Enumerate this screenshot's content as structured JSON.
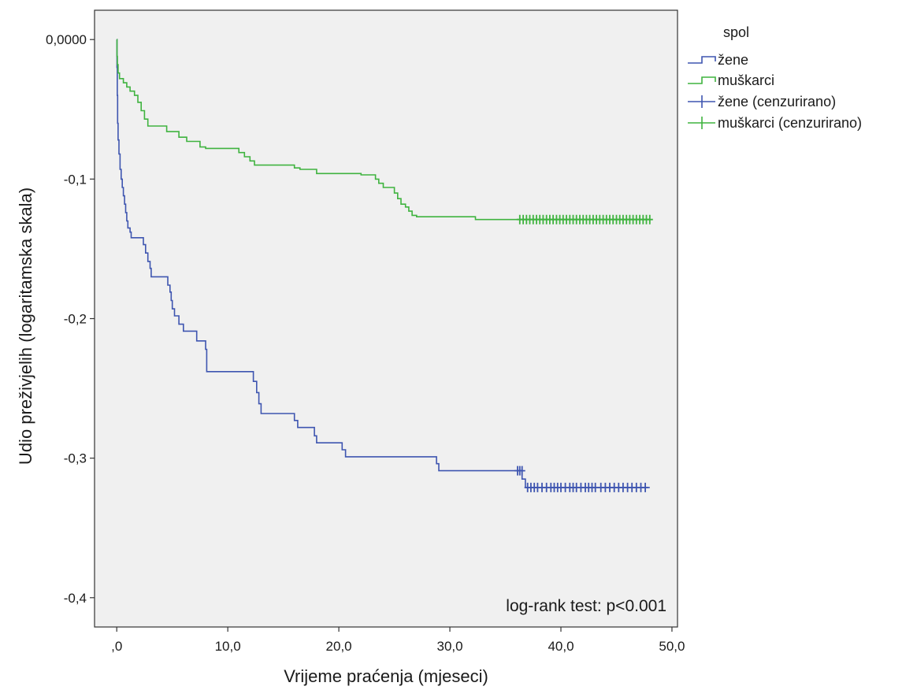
{
  "chart_data": {
    "type": "line",
    "step": true,
    "title": "",
    "xlabel": "Vrijeme praćenja (mjeseci)",
    "ylabel": "Udio preživjelih (logaritamska skala)",
    "xlim": [
      -2.0,
      50.5
    ],
    "ylim": [
      -0.421,
      0.021
    ],
    "x_ticks": [
      {
        "value": 0,
        "label": ",0"
      },
      {
        "value": 10,
        "label": "10,0"
      },
      {
        "value": 20,
        "label": "20,0"
      },
      {
        "value": 30,
        "label": "30,0"
      },
      {
        "value": 40,
        "label": "40,0"
      },
      {
        "value": 50,
        "label": "50,0"
      }
    ],
    "y_ticks": [
      {
        "value": 0,
        "label": "0,0000"
      },
      {
        "value": -0.1,
        "label": "-0,1"
      },
      {
        "value": -0.2,
        "label": "-0,2"
      },
      {
        "value": -0.3,
        "label": "-0,3"
      },
      {
        "value": -0.4,
        "label": "-0,4"
      }
    ],
    "grid": false,
    "background": "#f0f0f0",
    "legend": {
      "title": "spol",
      "placement": "right-top",
      "entries": [
        {
          "label": "žene",
          "series": "zene",
          "kind": "step"
        },
        {
          "label": "muškarci",
          "series": "muskarci",
          "kind": "step"
        },
        {
          "label": "žene (cenzurirano)",
          "series": "zene",
          "kind": "censor"
        },
        {
          "label": "muškarci (cenzurirano)",
          "series": "muskarci",
          "kind": "censor"
        }
      ]
    },
    "annotations": [
      {
        "text": "log-rank test: p<0.001"
      }
    ],
    "series": [
      {
        "id": "zene",
        "name": "žene",
        "color": "#3e55b0",
        "steps": [
          [
            0,
            0
          ],
          [
            0.02,
            -0.02
          ],
          [
            0.05,
            -0.04
          ],
          [
            0.08,
            -0.06
          ],
          [
            0.12,
            -0.072
          ],
          [
            0.2,
            -0.082
          ],
          [
            0.3,
            -0.093
          ],
          [
            0.4,
            -0.1
          ],
          [
            0.5,
            -0.106
          ],
          [
            0.6,
            -0.112
          ],
          [
            0.7,
            -0.118
          ],
          [
            0.8,
            -0.124
          ],
          [
            0.9,
            -0.13
          ],
          [
            1.0,
            -0.135
          ],
          [
            1.2,
            -0.138
          ],
          [
            1.3,
            -0.142
          ],
          [
            2.4,
            -0.147
          ],
          [
            2.6,
            -0.153
          ],
          [
            2.8,
            -0.159
          ],
          [
            3.0,
            -0.164
          ],
          [
            3.1,
            -0.17
          ],
          [
            4.6,
            -0.176
          ],
          [
            4.8,
            -0.181
          ],
          [
            4.9,
            -0.187
          ],
          [
            5.0,
            -0.193
          ],
          [
            5.2,
            -0.198
          ],
          [
            5.6,
            -0.204
          ],
          [
            6.0,
            -0.209
          ],
          [
            7.2,
            -0.216
          ],
          [
            8.0,
            -0.222
          ],
          [
            8.1,
            -0.238
          ],
          [
            12.3,
            -0.245
          ],
          [
            12.6,
            -0.253
          ],
          [
            12.8,
            -0.261
          ],
          [
            13.0,
            -0.268
          ],
          [
            16.0,
            -0.273
          ],
          [
            16.3,
            -0.278
          ],
          [
            17.8,
            -0.284
          ],
          [
            18.0,
            -0.289
          ],
          [
            20.3,
            -0.294
          ],
          [
            20.6,
            -0.299
          ],
          [
            28.8,
            -0.304
          ],
          [
            29.0,
            -0.309
          ],
          [
            36.5,
            -0.315
          ],
          [
            36.8,
            -0.321
          ],
          [
            48.0,
            -0.321
          ]
        ],
        "censored": [
          [
            36.1,
            -0.309
          ],
          [
            36.3,
            -0.309
          ],
          [
            36.5,
            -0.309
          ],
          [
            37.0,
            -0.321
          ],
          [
            37.3,
            -0.321
          ],
          [
            37.6,
            -0.321
          ],
          [
            37.9,
            -0.321
          ],
          [
            38.3,
            -0.321
          ],
          [
            38.7,
            -0.321
          ],
          [
            39.1,
            -0.321
          ],
          [
            39.4,
            -0.321
          ],
          [
            39.7,
            -0.321
          ],
          [
            40.0,
            -0.321
          ],
          [
            40.4,
            -0.321
          ],
          [
            40.8,
            -0.321
          ],
          [
            41.1,
            -0.321
          ],
          [
            41.4,
            -0.321
          ],
          [
            41.8,
            -0.321
          ],
          [
            42.2,
            -0.321
          ],
          [
            42.5,
            -0.321
          ],
          [
            42.8,
            -0.321
          ],
          [
            43.1,
            -0.321
          ],
          [
            43.6,
            -0.321
          ],
          [
            44.0,
            -0.321
          ],
          [
            44.4,
            -0.321
          ],
          [
            44.8,
            -0.321
          ],
          [
            45.2,
            -0.321
          ],
          [
            45.6,
            -0.321
          ],
          [
            46.0,
            -0.321
          ],
          [
            46.4,
            -0.321
          ],
          [
            46.8,
            -0.321
          ],
          [
            47.2,
            -0.321
          ],
          [
            47.6,
            -0.321
          ]
        ]
      },
      {
        "id": "muskarci",
        "name": "muškarci",
        "color": "#3fb33f",
        "steps": [
          [
            0,
            0
          ],
          [
            0.02,
            -0.012
          ],
          [
            0.06,
            -0.018
          ],
          [
            0.12,
            -0.024
          ],
          [
            0.25,
            -0.028
          ],
          [
            0.6,
            -0.031
          ],
          [
            0.9,
            -0.034
          ],
          [
            1.2,
            -0.037
          ],
          [
            1.6,
            -0.04
          ],
          [
            1.9,
            -0.045
          ],
          [
            2.2,
            -0.051
          ],
          [
            2.5,
            -0.057
          ],
          [
            2.8,
            -0.062
          ],
          [
            4.5,
            -0.066
          ],
          [
            5.6,
            -0.07
          ],
          [
            6.3,
            -0.073
          ],
          [
            7.5,
            -0.077
          ],
          [
            8.0,
            -0.078
          ],
          [
            10.0,
            -0.078
          ],
          [
            11.0,
            -0.081
          ],
          [
            11.5,
            -0.084
          ],
          [
            12.0,
            -0.087
          ],
          [
            12.4,
            -0.09
          ],
          [
            14.0,
            -0.09
          ],
          [
            16.0,
            -0.092
          ],
          [
            16.5,
            -0.093
          ],
          [
            18.0,
            -0.096
          ],
          [
            20.0,
            -0.096
          ],
          [
            22.0,
            -0.097
          ],
          [
            23.3,
            -0.1
          ],
          [
            23.6,
            -0.103
          ],
          [
            24.0,
            -0.106
          ],
          [
            25.0,
            -0.11
          ],
          [
            25.3,
            -0.114
          ],
          [
            25.6,
            -0.118
          ],
          [
            26.0,
            -0.12
          ],
          [
            26.3,
            -0.123
          ],
          [
            26.6,
            -0.126
          ],
          [
            27.0,
            -0.127
          ],
          [
            32.3,
            -0.129
          ],
          [
            48.0,
            -0.129
          ]
        ],
        "censored": [
          [
            36.3,
            -0.129
          ],
          [
            36.6,
            -0.129
          ],
          [
            36.9,
            -0.129
          ],
          [
            37.2,
            -0.129
          ],
          [
            37.5,
            -0.129
          ],
          [
            37.8,
            -0.129
          ],
          [
            38.1,
            -0.129
          ],
          [
            38.4,
            -0.129
          ],
          [
            38.7,
            -0.129
          ],
          [
            39.0,
            -0.129
          ],
          [
            39.3,
            -0.129
          ],
          [
            39.6,
            -0.129
          ],
          [
            39.9,
            -0.129
          ],
          [
            40.2,
            -0.129
          ],
          [
            40.5,
            -0.129
          ],
          [
            40.8,
            -0.129
          ],
          [
            41.1,
            -0.129
          ],
          [
            41.4,
            -0.129
          ],
          [
            41.7,
            -0.129
          ],
          [
            42.0,
            -0.129
          ],
          [
            42.3,
            -0.129
          ],
          [
            42.6,
            -0.129
          ],
          [
            42.9,
            -0.129
          ],
          [
            43.2,
            -0.129
          ],
          [
            43.5,
            -0.129
          ],
          [
            43.8,
            -0.129
          ],
          [
            44.1,
            -0.129
          ],
          [
            44.4,
            -0.129
          ],
          [
            44.7,
            -0.129
          ],
          [
            45.0,
            -0.129
          ],
          [
            45.3,
            -0.129
          ],
          [
            45.6,
            -0.129
          ],
          [
            45.9,
            -0.129
          ],
          [
            46.2,
            -0.129
          ],
          [
            46.5,
            -0.129
          ],
          [
            46.8,
            -0.129
          ],
          [
            47.1,
            -0.129
          ],
          [
            47.4,
            -0.129
          ],
          [
            47.7,
            -0.129
          ],
          [
            48.0,
            -0.129
          ]
        ]
      }
    ]
  }
}
